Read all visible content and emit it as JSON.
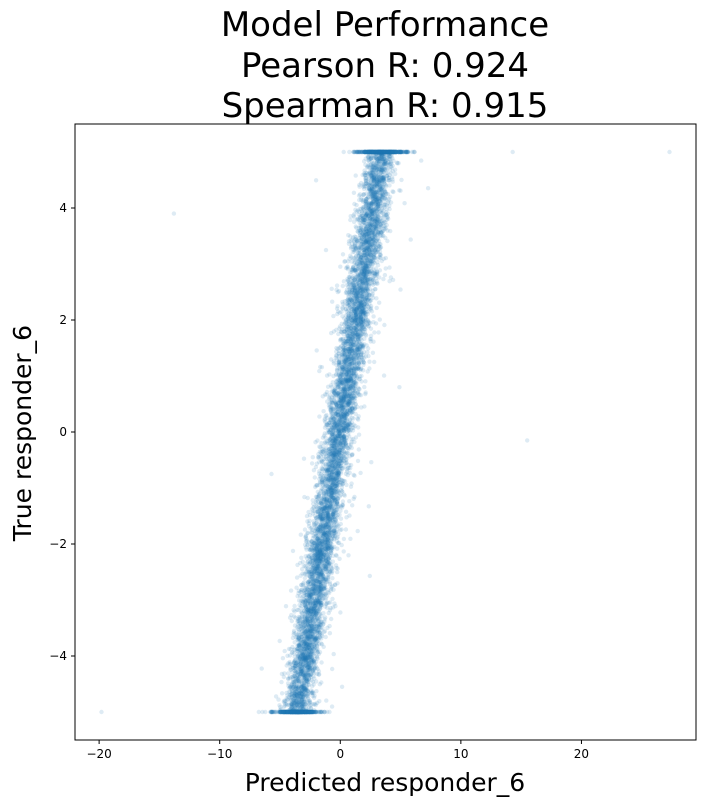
{
  "chart_data": {
    "type": "scatter",
    "title_lines": [
      "Model Performance",
      "Pearson R: 0.924",
      "Spearman R: 0.915"
    ],
    "xlabel": "Predicted responder_6",
    "ylabel": "True responder_6",
    "xlim": [
      -22,
      29.5
    ],
    "ylim": [
      -5.5,
      5.5
    ],
    "xticks": [
      -20,
      -10,
      0,
      10,
      20
    ],
    "yticks": [
      -4,
      -2,
      0,
      2,
      4
    ],
    "xtick_labels": [
      "−20",
      "−10",
      "0",
      "10",
      "20"
    ],
    "ytick_labels": [
      "−4",
      "−2",
      "0",
      "2",
      "4"
    ],
    "grid": false,
    "marker_color": "#1f77b4",
    "marker_alpha": 0.15,
    "band": {
      "description": "dense diagonal band of points",
      "center_line": [
        [
          -3.6,
          -5.0
        ],
        [
          3.4,
          5.0
        ]
      ],
      "half_width_x": 1.1,
      "clip_y": [
        -5.0,
        5.0
      ]
    },
    "outliers": [
      {
        "x": -19.8,
        "y": -5.0
      },
      {
        "x": -13.8,
        "y": 3.9
      },
      {
        "x": 14.3,
        "y": 5.0
      },
      {
        "x": 27.3,
        "y": 5.0
      },
      {
        "x": 15.5,
        "y": -0.15
      },
      {
        "x": -5.7,
        "y": -0.75
      },
      {
        "x": 4.9,
        "y": 0.8
      }
    ]
  }
}
